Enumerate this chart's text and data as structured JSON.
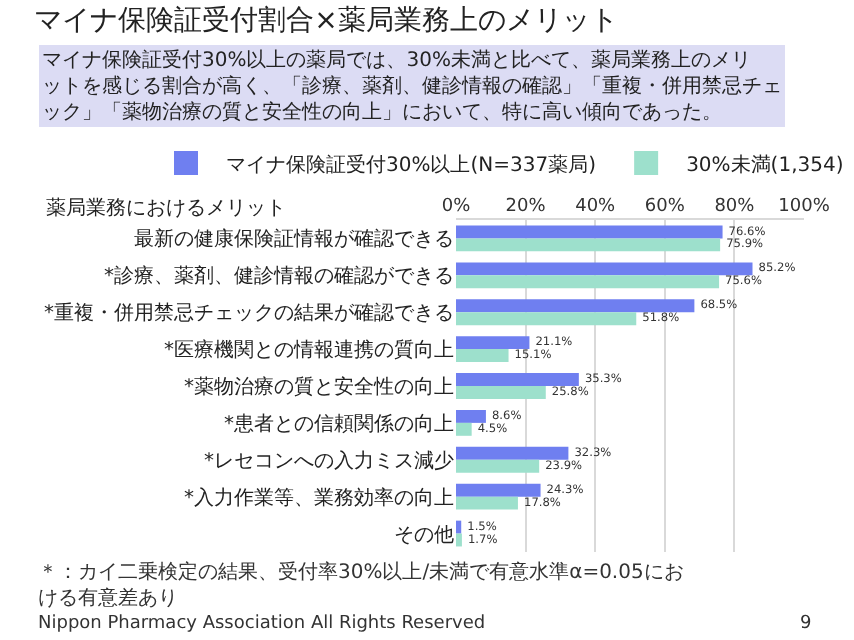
{
  "chart_data": {
    "type": "bar",
    "orientation": "horizontal",
    "title": "マイナ保険証受付割合×薬局業務上のメリット",
    "subtitle": "マイナ保険証受付30%以上の薬局では、30%未満と比べて、薬局業務上のメリットを感じる割合が高く、「診療、薬剤、健診情報の確認」「重複・併用禁忌チェック」「薬物治療の質と安全性の向上」において、特に高い傾向であった。",
    "ylabel": "薬局業務におけるメリット",
    "categories": [
      "最新の健康保険証情報が確認できる",
      "*診療、薬剤、健診情報の確認ができる",
      "*重複・併用禁忌チェックの結果が確認できる",
      "*医療機関との情報連携の質向上",
      "*薬物治療の質と安全性の向上",
      "*患者との信頼関係の向上",
      "*レセコンへの入力ミス減少",
      "*入力作業等、業務効率の向上",
      "その他"
    ],
    "series": [
      {
        "name": "マイナ保険証受付30%以上(N=337薬局)",
        "color": "#6f7ff0",
        "values": [
          76.6,
          85.2,
          68.5,
          21.1,
          35.3,
          8.6,
          32.3,
          24.3,
          1.5
        ],
        "value_labels": [
          "76.6%",
          "85.2%",
          "68.5%",
          "21.1%",
          "35.3%",
          "8.6%",
          "32.3%",
          "24.3%",
          "1.5%"
        ]
      },
      {
        "name": "30%未満(1,354)",
        "color": "#9de0cc",
        "values": [
          75.9,
          75.6,
          51.8,
          15.1,
          25.8,
          4.5,
          23.9,
          17.8,
          1.7
        ],
        "value_labels": [
          "75.9%",
          "75.6%",
          "51.8%",
          "15.1%",
          "25.8%",
          "4.5%",
          "23.9%",
          "17.8%",
          "1.7%"
        ]
      }
    ],
    "xlim": [
      0,
      100
    ],
    "xticks": [
      {
        "value": 0,
        "label": "0%"
      },
      {
        "value": 20,
        "label": "20%"
      },
      {
        "value": 40,
        "label": "40%"
      },
      {
        "value": 60,
        "label": "60%"
      },
      {
        "value": 80,
        "label": "80%"
      },
      {
        "value": 100,
        "label": "100%"
      }
    ],
    "grid": "x",
    "legend": "top",
    "annotations": [
      "＊：カイ二乗検定の結果、受付率30%以上/未満で有意水準α=0.05における有意差あり",
      "Nippon Pharmacy Association All Rights Reserved",
      "9"
    ]
  }
}
